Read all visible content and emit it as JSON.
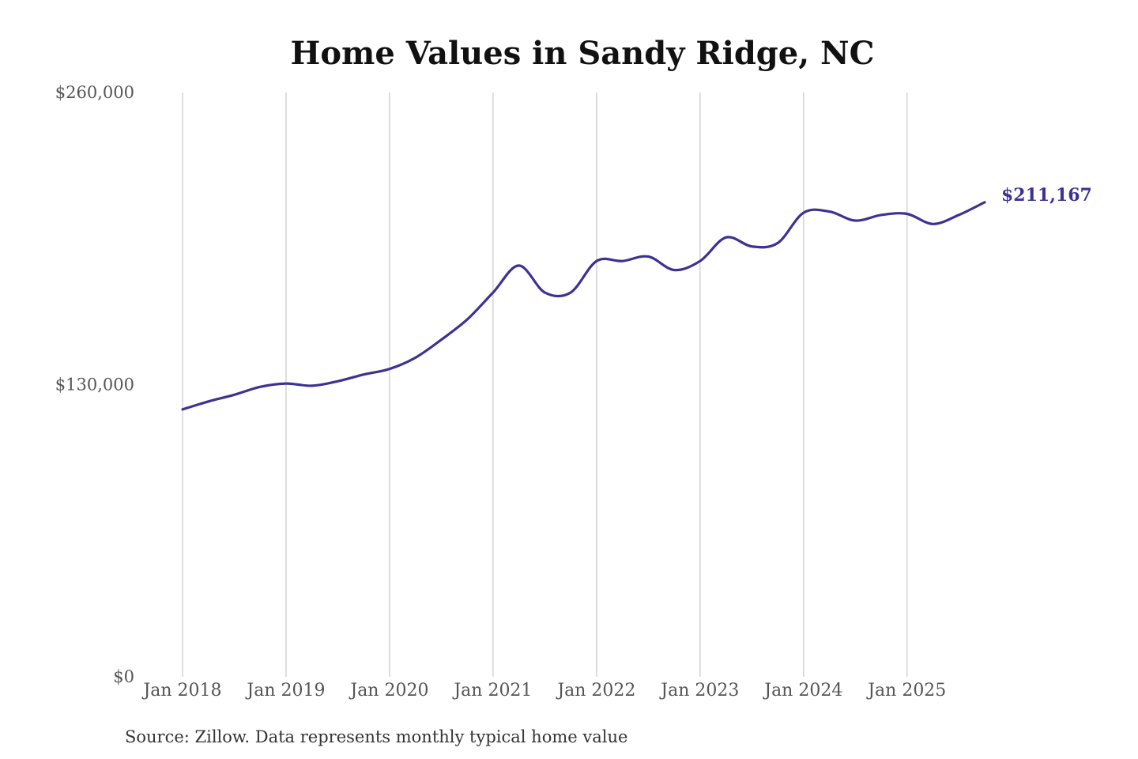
{
  "chart_data": {
    "type": "line",
    "title": "Home Values in Sandy Ridge, NC",
    "xlabel": "",
    "ylabel": "",
    "ylim": [
      0,
      260000
    ],
    "yticks": [
      {
        "value": 0,
        "label": "$0"
      },
      {
        "value": 130000,
        "label": "$130,000"
      },
      {
        "value": 260000,
        "label": "$260,000"
      }
    ],
    "xticks": [
      {
        "value": 2018.0,
        "label": "Jan 2018"
      },
      {
        "value": 2019.0,
        "label": "Jan 2019"
      },
      {
        "value": 2020.0,
        "label": "Jan 2020"
      },
      {
        "value": 2021.0,
        "label": "Jan 2021"
      },
      {
        "value": 2022.0,
        "label": "Jan 2022"
      },
      {
        "value": 2023.0,
        "label": "Jan 2023"
      },
      {
        "value": 2024.0,
        "label": "Jan 2024"
      },
      {
        "value": 2025.0,
        "label": "Jan 2025"
      }
    ],
    "grid": "vertical",
    "legend": "none",
    "colors": {
      "line": "#3b3294",
      "grid": "#c8c8c8"
    },
    "end_label": "$211,167",
    "series": [
      {
        "x": [
          2018.0,
          2018.25,
          2018.5,
          2018.75,
          2019.0,
          2019.25,
          2019.5,
          2019.75,
          2020.0,
          2020.25,
          2020.5,
          2020.75,
          2021.0,
          2021.25,
          2021.5,
          2021.75,
          2022.0,
          2022.25,
          2022.5,
          2022.75,
          2023.0,
          2023.25,
          2023.5,
          2023.75,
          2024.0,
          2024.25,
          2024.5,
          2024.75,
          2025.0,
          2025.25,
          2025.5,
          2025.75
        ],
        "values": [
          119000,
          122500,
          125500,
          129000,
          130500,
          129500,
          131500,
          134500,
          137000,
          142000,
          150000,
          159000,
          171000,
          183000,
          171000,
          171000,
          185000,
          185000,
          187000,
          181000,
          185000,
          195500,
          191500,
          193000,
          206500,
          207000,
          203000,
          205500,
          206000,
          201500,
          205500,
          211167
        ]
      }
    ]
  },
  "source_note": "Source: Zillow. Data represents monthly typical home value"
}
